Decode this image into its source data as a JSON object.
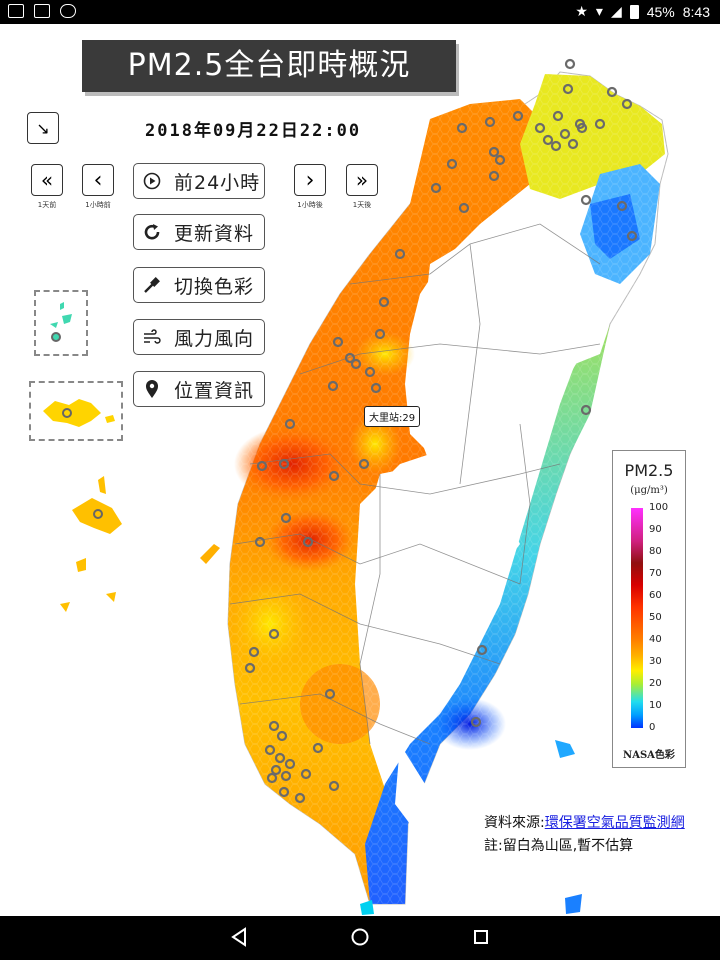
{
  "status_bar": {
    "battery": "45%",
    "time": "8:43"
  },
  "app": {
    "title": "PM2.5全台即時概況",
    "timestamp": "2018年09月22日22:00",
    "nav": [
      {
        "id": "day-back",
        "glyph": "«",
        "label": "1天前"
      },
      {
        "id": "hour-back",
        "glyph": "‹",
        "label": "1小時前"
      },
      {
        "id": "hour-forward",
        "glyph": "›",
        "label": "1小時後"
      },
      {
        "id": "day-forward",
        "glyph": "»",
        "label": "1天後"
      }
    ],
    "buttons": {
      "play_24h": "前24小時",
      "refresh": "更新資料",
      "switch_color": "切換色彩",
      "wind": "風力風向",
      "location": "位置資訊"
    },
    "station_tooltip": "大里站:29",
    "legend": {
      "title": "PM2.5",
      "unit": "(μg/m³)",
      "ticks": [
        "100",
        "90",
        "80",
        "70",
        "60",
        "50",
        "40",
        "30",
        "20",
        "10",
        "0"
      ],
      "palette_name": "NASA色彩",
      "colors": {
        "low": "#0033ff",
        "mid": "#ffee00",
        "high": "#ff3300",
        "max": "#ff30ff"
      }
    },
    "source": {
      "prefix": "資料來源:",
      "link_text": "環保署空氣品質監測網",
      "note": "註:留白為山區,暫不估算"
    }
  },
  "icons": [
    "image-icon",
    "mail-icon",
    "incognito-icon",
    "star-icon",
    "wifi-icon",
    "signal-icon",
    "battery-icon",
    "expand-icon",
    "play-icon",
    "refresh-icon",
    "eyedropper-icon",
    "wind-icon",
    "location-pin-icon",
    "back-icon",
    "home-icon",
    "recents-icon"
  ]
}
